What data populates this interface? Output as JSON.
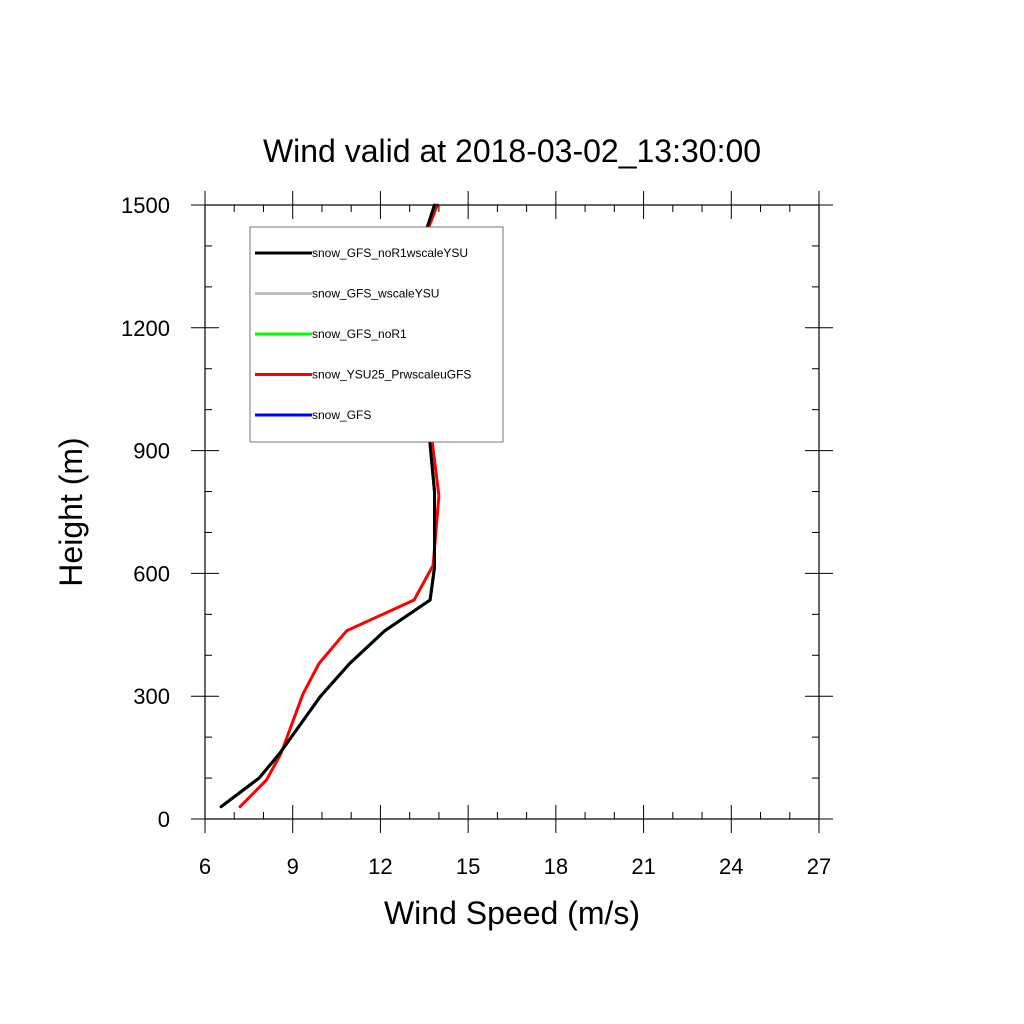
{
  "chart_data": {
    "type": "line",
    "title": "Wind valid at 2018-03-02_13:30:00",
    "xlabel": "Wind Speed (m/s)",
    "ylabel": "Height (m)",
    "xlim": [
      6,
      27
    ],
    "ylim": [
      0,
      1500
    ],
    "xticks": [
      "6",
      "9",
      "12",
      "15",
      "18",
      "21",
      "24",
      "27"
    ],
    "yticks": [
      "0",
      "300",
      "600",
      "900",
      "1200",
      "1500"
    ],
    "legend_placement": "upper-left inside plot",
    "series": [
      {
        "name": "snow_GFS_noR1wscaleYSU",
        "color": "#000000",
        "x": [
          6.55,
          7.85,
          8.55,
          9.95,
          10.95,
          12.15,
          13.7,
          13.85,
          13.85,
          13.6,
          13.3,
          13.0,
          13.05,
          13.35,
          13.85
        ],
        "y": [
          30,
          100,
          160,
          300,
          380,
          460,
          535,
          615,
          800,
          990,
          1110,
          1200,
          1280,
          1390,
          1500
        ]
      },
      {
        "name": "snow_GFS_wscaleYSU",
        "color": "#bfbfbf",
        "x": [
          6.55,
          7.85,
          8.55,
          9.95,
          10.95,
          12.15,
          13.7,
          13.85,
          13.85,
          13.6,
          13.3,
          13.0,
          13.05,
          13.35,
          13.85
        ],
        "y": [
          30,
          100,
          160,
          300,
          380,
          460,
          535,
          615,
          800,
          990,
          1110,
          1200,
          1280,
          1390,
          1500
        ]
      },
      {
        "name": "snow_GFS_noR1",
        "color": "#00ff00",
        "x": [
          6.55,
          7.85,
          8.55,
          9.95,
          10.95,
          12.15,
          13.7,
          13.85,
          13.85,
          13.6,
          13.3,
          13.0,
          13.05,
          13.35,
          13.85
        ],
        "y": [
          30,
          100,
          160,
          300,
          380,
          460,
          535,
          615,
          800,
          990,
          1110,
          1200,
          1280,
          1390,
          1500
        ]
      },
      {
        "name": "snow_YSU25_PrwscaleuGFS",
        "color": "#ff0000",
        "x": [
          7.2,
          8.1,
          8.6,
          9.35,
          9.9,
          10.85,
          13.15,
          13.8,
          14.0,
          13.65,
          13.25,
          12.95,
          13.0,
          13.35,
          13.95
        ],
        "y": [
          30,
          95,
          160,
          305,
          380,
          460,
          535,
          620,
          790,
          990,
          1110,
          1190,
          1280,
          1390,
          1500
        ]
      },
      {
        "name": "snow_GFS",
        "color": "#0000ff",
        "x": [
          6.55,
          7.85,
          8.55,
          9.95,
          10.95,
          12.15,
          13.7,
          13.85,
          13.85,
          13.6,
          13.3,
          13.0,
          13.05,
          13.35,
          13.85
        ],
        "y": [
          30,
          100,
          160,
          300,
          380,
          460,
          535,
          615,
          800,
          990,
          1110,
          1200,
          1280,
          1390,
          1500
        ]
      }
    ]
  }
}
